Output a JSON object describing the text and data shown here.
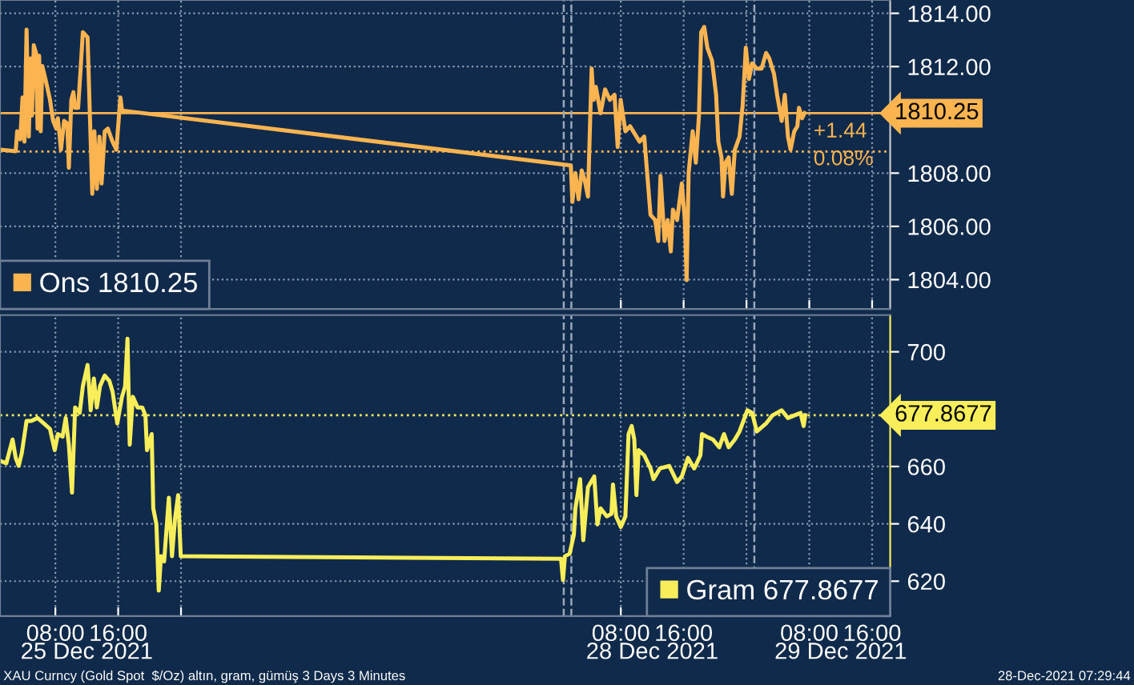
{
  "chart_data": [
    {
      "type": "line",
      "tick_labels": "y",
      "grid": true,
      "legend": "bottom left",
      "line_style": "solid",
      "marker": "none",
      "xlim": [
        "2021-12-25T00:57",
        "2021-12-29T18:18"
      ],
      "xticks": [
        {
          "value": "2021-12-25T08:00",
          "label": null
        },
        {
          "value": "2021-12-25T16:00",
          "label": null
        },
        {
          "value": "2021-12-26T00:00",
          "label": null
        },
        {
          "value": "2021-12-28T08:00",
          "label": null
        },
        {
          "value": "2021-12-28T16:00",
          "label": null
        },
        {
          "value": "2021-12-29T00:00",
          "label": null
        },
        {
          "value": "2021-12-29T08:00",
          "label": null
        },
        {
          "value": "2021-12-29T16:00",
          "label": null
        }
      ],
      "ylim": [
        1802.9,
        1814.5
      ],
      "yticks": [
        {
          "value": 1804,
          "label": "1804.00"
        },
        {
          "value": 1806,
          "label": "1806.00"
        },
        {
          "value": 1808,
          "label": "1808.00"
        },
        {
          "value": 1812,
          "label": "1812.00"
        },
        {
          "value": 1814,
          "label": "1814.00"
        }
      ],
      "ref_lines": [
        {
          "axis": "y",
          "value": 1810.25,
          "label": "1810.25",
          "color": "#fbb450",
          "line_style": "solid"
        },
        {
          "axis": "y",
          "value": 1808.81,
          "label": null,
          "color": "#fbb450",
          "line_style": "dotted"
        },
        {
          "axis": "x",
          "value": "2021-12-28T00:44",
          "label": null,
          "color": "#9aa8bb",
          "line_style": "dashed"
        },
        {
          "axis": "x",
          "value": "2021-12-28T01:42",
          "label": null,
          "color": "#9aa8bb",
          "line_style": "dashed"
        },
        {
          "axis": "x",
          "value": "2021-12-29T01:00",
          "label": null,
          "color": "#9aa8bb",
          "line_style": "dashed"
        }
      ],
      "annotations": [
        "+1.44",
        "0.08%"
      ],
      "series": [
        {
          "name": "Ons 1810.25",
          "color": "#fbb450",
          "x": [
            "2021-12-25T00:58",
            "2021-12-25T02:57",
            "2021-12-25T03:08",
            "2021-12-25T03:32",
            "2021-12-25T03:49",
            "2021-12-25T04:04",
            "2021-12-25T04:20",
            "2021-12-25T04:37",
            "2021-12-25T04:52",
            "2021-12-25T05:01",
            "2021-12-25T05:15",
            "2021-12-25T05:32",
            "2021-12-25T05:44",
            "2021-12-25T05:56",
            "2021-12-25T06:08",
            "2021-12-25T06:20",
            "2021-12-25T06:44",
            "2021-12-25T07:19",
            "2021-12-25T07:43",
            "2021-12-25T08:07",
            "2021-12-25T08:19",
            "2021-12-25T08:43",
            "2021-12-25T09:07",
            "2021-12-25T09:31",
            "2021-12-25T09:43",
            "2021-12-25T10:02",
            "2021-12-25T10:18",
            "2021-12-25T10:30",
            "2021-12-25T10:54",
            "2021-12-25T11:13",
            "2021-12-25T11:30",
            "2021-12-25T12:06",
            "2021-12-25T12:25",
            "2021-12-25T12:42",
            "2021-12-25T12:58",
            "2021-12-25T13:17",
            "2021-12-25T13:37",
            "2021-12-25T13:53",
            "2021-12-25T14:17",
            "2021-12-25T14:41",
            "2021-12-25T15:17",
            "2021-12-25T15:46",
            "2021-12-25T16:17",
            "2021-12-25T16:29",
            "2021-12-28T01:38",
            "2021-12-28T01:50",
            "2021-12-28T02:13",
            "2021-12-28T02:37",
            "2021-12-28T03:01",
            "2021-12-28T03:25",
            "2021-12-28T03:49",
            "2021-12-28T04:17",
            "2021-12-28T04:32",
            "2021-12-28T04:49",
            "2021-12-28T05:25",
            "2021-12-28T06:00",
            "2021-12-28T06:36",
            "2021-12-28T07:12",
            "2021-12-28T07:36",
            "2021-12-28T07:59",
            "2021-12-28T08:35",
            "2021-12-28T09:11",
            "2021-12-28T09:47",
            "2021-12-28T10:23",
            "2021-12-28T10:59",
            "2021-12-28T11:18",
            "2021-12-28T11:47",
            "2021-12-28T12:22",
            "2021-12-28T12:46",
            "2021-12-28T13:03",
            "2021-12-28T13:34",
            "2021-12-28T13:58",
            "2021-12-28T14:22",
            "2021-12-28T14:38",
            "2021-12-28T15:10",
            "2021-12-28T15:46",
            "2021-12-28T16:09",
            "2021-12-28T16:23",
            "2021-12-28T16:38",
            "2021-12-28T17:09",
            "2021-12-28T17:33",
            "2021-12-28T17:57",
            "2021-12-28T18:14",
            "2021-12-28T18:37",
            "2021-12-28T19:01",
            "2021-12-28T19:37",
            "2021-12-28T20:08",
            "2021-12-28T20:25",
            "2021-12-28T20:49",
            "2021-12-28T21:01",
            "2021-12-28T21:20",
            "2021-12-28T21:44",
            "2021-12-28T22:08",
            "2021-12-28T22:31",
            "2021-12-28T23:07",
            "2021-12-28T23:31",
            "2021-12-28T23:55",
            "2021-12-29T00:19",
            "2021-12-29T00:43",
            "2021-12-29T01:19",
            "2021-12-29T01:55",
            "2021-12-29T02:30",
            "2021-12-29T02:54",
            "2021-12-29T03:30",
            "2021-12-29T03:54",
            "2021-12-29T04:29",
            "2021-12-29T04:53",
            "2021-12-29T05:17",
            "2021-12-29T05:37",
            "2021-12-29T06:05",
            "2021-12-29T06:29",
            "2021-12-29T06:41",
            "2021-12-29T07:05",
            "2021-12-29T07:24"
          ],
          "values": [
            1808.88,
            1808.82,
            1809.57,
            1809.27,
            1810.84,
            1809.18,
            1813.39,
            1809.37,
            1812.31,
            1810.16,
            1812.8,
            1812.51,
            1809.67,
            1812.41,
            1809.57,
            1812.02,
            1811.53,
            1810.75,
            1809.96,
            1809.67,
            1810.06,
            1808.88,
            1809.96,
            1809.86,
            1808.2,
            1810.75,
            1811.04,
            1810.45,
            1810.45,
            1811.92,
            1813.29,
            1813.1,
            1809.96,
            1807.22,
            1809.57,
            1807.41,
            1809.37,
            1807.61,
            1809.57,
            1809.67,
            1809.18,
            1808.88,
            1810.84,
            1810.35,
            1808.29,
            1806.92,
            1808.0,
            1807.02,
            1808.1,
            1807.71,
            1807.12,
            1811.92,
            1810.75,
            1811.24,
            1810.25,
            1811.14,
            1810.75,
            1810.94,
            1808.98,
            1810.75,
            1809.57,
            1809.76,
            1809.47,
            1809.18,
            1809.37,
            1808.2,
            1806.43,
            1806.24,
            1805.45,
            1807.9,
            1805.45,
            1806.24,
            1805.06,
            1806.63,
            1806.24,
            1807.61,
            1806.24,
            1803.98,
            1808.0,
            1809.57,
            1808.39,
            1810.16,
            1813.29,
            1813.49,
            1812.71,
            1812.22,
            1810.94,
            1809.18,
            1808.59,
            1807.12,
            1808.39,
            1808.59,
            1807.22,
            1808.88,
            1809.37,
            1810.55,
            1812.71,
            1811.53,
            1812.12,
            1811.92,
            1811.92,
            1812.51,
            1812.31,
            1811.73,
            1810.94,
            1809.96,
            1810.94,
            1809.37,
            1808.88,
            1809.57,
            1809.76,
            1810.45,
            1810.06,
            1810.25
          ]
        }
      ]
    },
    {
      "type": "line",
      "grid": true,
      "legend": "bottom right",
      "line_style": "solid",
      "marker": "none",
      "xlim": [
        "2021-12-25T00:57",
        "2021-12-29T18:18"
      ],
      "xticks": [
        {
          "value": "2021-12-25T08:00",
          "label": "08:00"
        },
        {
          "value": "2021-12-25T16:00",
          "label": "16:00"
        },
        {
          "value": "2021-12-26T00:00",
          "label": null
        },
        {
          "value": "2021-12-28T08:00",
          "label": "08:00"
        },
        {
          "value": "2021-12-28T16:00",
          "label": "16:00"
        },
        {
          "value": "2021-12-29T00:00",
          "label": null
        },
        {
          "value": "2021-12-29T08:00",
          "label": "08:00"
        },
        {
          "value": "2021-12-29T16:00",
          "label": "16:00"
        }
      ],
      "ylim": [
        607.8,
        712.8
      ],
      "yticks": [
        620,
        640,
        660,
        700
      ],
      "ref_lines": [
        {
          "axis": "y",
          "value": 677.8677,
          "label": "677.8677",
          "color": "#f7ee5a",
          "line_style": "dotted"
        },
        {
          "axis": "x",
          "value": "2021-12-28T00:44",
          "label": null,
          "color": "#9aa8bb",
          "line_style": "dashed"
        },
        {
          "axis": "x",
          "value": "2021-12-28T01:42",
          "label": null,
          "color": "#9aa8bb",
          "line_style": "dashed"
        },
        {
          "axis": "x",
          "value": "2021-12-29T01:00",
          "label": null,
          "color": "#9aa8bb",
          "line_style": "dashed"
        }
      ],
      "annotations": [
        "25 Dec 2021",
        "28 Dec 2021",
        "29 Dec 2021",
        "XAU Curncy (Gold Spot  $/Oz) altın, gram, gümüş 3 Days 3 Minutes",
        "28-Dec-2021 07:29:44"
      ],
      "series": [
        {
          "name": "Gram 677.8677",
          "color": "#f7ee5a",
          "x": [
            "2021-12-25T00:58",
            "2021-12-25T01:45",
            "2021-12-25T02:33",
            "2021-12-25T02:57",
            "2021-12-25T03:20",
            "2021-12-25T03:44",
            "2021-12-25T04:20",
            "2021-12-25T04:56",
            "2021-12-25T05:44",
            "2021-12-25T06:32",
            "2021-12-25T07:19",
            "2021-12-25T07:55",
            "2021-12-25T08:19",
            "2021-12-25T08:55",
            "2021-12-25T09:19",
            "2021-12-25T09:43",
            "2021-12-25T10:07",
            "2021-12-25T10:31",
            "2021-12-25T11:06",
            "2021-12-25T11:30",
            "2021-12-25T12:06",
            "2021-12-25T12:30",
            "2021-12-25T12:54",
            "2021-12-25T13:17",
            "2021-12-25T13:41",
            "2021-12-25T14:17",
            "2021-12-25T14:53",
            "2021-12-25T15:17",
            "2021-12-25T15:53",
            "2021-12-25T16:29",
            "2021-12-25T16:53",
            "2021-12-25T17:11",
            "2021-12-25T17:28",
            "2021-12-25T17:52",
            "2021-12-25T18:28",
            "2021-12-25T19:04",
            "2021-12-25T19:28",
            "2021-12-25T19:40",
            "2021-12-25T20:16",
            "2021-12-25T20:28",
            "2021-12-25T20:52",
            "2021-12-25T21:10",
            "2021-12-25T21:27",
            "2021-12-25T21:51",
            "2021-12-25T22:27",
            "2021-12-25T22:51",
            "2021-12-25T23:14",
            "2021-12-25T23:38",
            "2021-12-25T23:58",
            "2021-12-28T00:23",
            "2021-12-28T00:38",
            "2021-12-28T00:53",
            "2021-12-28T01:29",
            "2021-12-28T02:01",
            "2021-12-28T02:13",
            "2021-12-28T02:49",
            "2021-12-28T03:13",
            "2021-12-28T03:49",
            "2021-12-28T04:37",
            "2021-12-28T05:01",
            "2021-12-28T05:25",
            "2021-12-28T06:13",
            "2021-12-28T06:48",
            "2021-12-28T07:00",
            "2021-12-28T07:24",
            "2021-12-28T08:00",
            "2021-12-28T08:35",
            "2021-12-28T08:59",
            "2021-12-28T09:23",
            "2021-12-28T09:43",
            "2021-12-28T09:59",
            "2021-12-28T10:16",
            "2021-12-28T10:59",
            "2021-12-28T11:47",
            "2021-12-28T12:10",
            "2021-12-28T12:58",
            "2021-12-28T14:10",
            "2021-12-28T15:10",
            "2021-12-28T15:46",
            "2021-12-28T16:33",
            "2021-12-28T17:21",
            "2021-12-28T18:08",
            "2021-12-28T18:20",
            "2021-12-28T18:56",
            "2021-12-28T19:44",
            "2021-12-28T20:32",
            "2021-12-28T21:08",
            "2021-12-28T21:44",
            "2021-12-28T22:31",
            "2021-12-28T23:07",
            "2021-12-29T00:07",
            "2021-12-29T00:43",
            "2021-12-29T01:19",
            "2021-12-29T02:30",
            "2021-12-29T03:18",
            "2021-12-29T04:29",
            "2021-12-29T05:17",
            "2021-12-29T06:05",
            "2021-12-29T06:53",
            "2021-12-29T07:17",
            "2021-12-29T07:29"
          ],
          "values": [
            662.0,
            661.1,
            669.4,
            663.0,
            660.2,
            664.8,
            675.9,
            675.9,
            676.9,
            675.0,
            673.1,
            665.7,
            671.3,
            670.4,
            676.9,
            667.6,
            650.9,
            680.6,
            678.7,
            688.0,
            695.4,
            679.6,
            690.7,
            680.6,
            688.0,
            691.7,
            689.8,
            686.1,
            675.0,
            684.3,
            688.0,
            704.6,
            667.6,
            684.3,
            680.6,
            680.6,
            677.8,
            665.7,
            671.3,
            645.4,
            639.8,
            616.7,
            628.7,
            626.9,
            649.1,
            628.7,
            641.7,
            650.0,
            628.7,
            627.8,
            620.4,
            628.7,
            629.6,
            636.1,
            645.4,
            655.6,
            634.3,
            652.8,
            656.5,
            639.8,
            645.4,
            642.6,
            643.5,
            653.7,
            642.6,
            638.9,
            642.6,
            671.3,
            674.1,
            669.4,
            650.0,
            665.7,
            663.9,
            659.3,
            655.6,
            659.3,
            660.2,
            654.6,
            656.5,
            663.0,
            659.3,
            663.9,
            671.3,
            670.4,
            669.4,
            666.7,
            671.3,
            666.7,
            669.4,
            672.2,
            679.6,
            678.7,
            672.2,
            675.0,
            677.8,
            679.6,
            676.9,
            677.8,
            678.7,
            674.1,
            677.9
          ]
        }
      ]
    }
  ]
}
